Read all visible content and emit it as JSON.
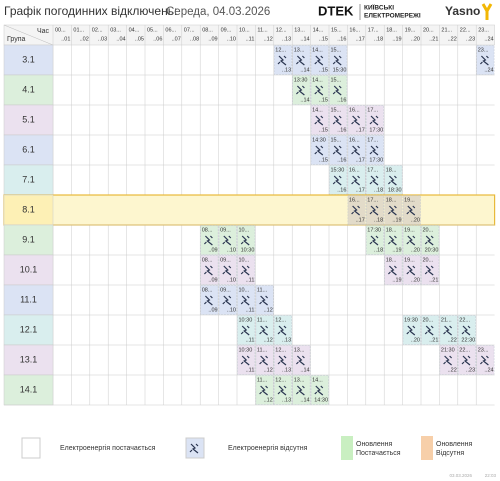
{
  "header": {
    "title": "Графік погодинних відключень:",
    "date": "Середа, 04.03.2026",
    "brand_dtek": "DTEK",
    "brand_line1": "КИЇВСЬКІ",
    "brand_line2": "ЕЛЕКТРОМЕРЕЖІ",
    "brand_yasno": "Yasno"
  },
  "table": {
    "hour_label": "Час",
    "group_label": "Група",
    "columns": [
      {
        "from": "00...",
        "to": "..01"
      },
      {
        "from": "01...",
        "to": "..02"
      },
      {
        "from": "02...",
        "to": "..03"
      },
      {
        "from": "03...",
        "to": "..04"
      },
      {
        "from": "04...",
        "to": "..05"
      },
      {
        "from": "05...",
        "to": "..06"
      },
      {
        "from": "06...",
        "to": "..07"
      },
      {
        "from": "07...",
        "to": "..08"
      },
      {
        "from": "08...",
        "to": "..09"
      },
      {
        "from": "09...",
        "to": "..10"
      },
      {
        "from": "10...",
        "to": "..11"
      },
      {
        "from": "11...",
        "to": "..12"
      },
      {
        "from": "12...",
        "to": "..13"
      },
      {
        "from": "13...",
        "to": "..14"
      },
      {
        "from": "14...",
        "to": "..15"
      },
      {
        "from": "15...",
        "to": "..16"
      },
      {
        "from": "16...",
        "to": "..17"
      },
      {
        "from": "17...",
        "to": "..18"
      },
      {
        "from": "18...",
        "to": "..19"
      },
      {
        "from": "19...",
        "to": "..20"
      },
      {
        "from": "20...",
        "to": "..21"
      },
      {
        "from": "21...",
        "to": "..22"
      },
      {
        "from": "22...",
        "to": "..23"
      },
      {
        "from": "23...",
        "to": "..24"
      }
    ],
    "rows": [
      {
        "group": "3.1",
        "color": "#dbe3f4",
        "cells": [
          null,
          null,
          null,
          null,
          null,
          null,
          null,
          null,
          null,
          null,
          null,
          null,
          {
            "from": "12...",
            "to": "..13"
          },
          {
            "from": "13...",
            "to": "..14"
          },
          {
            "from": "14...",
            "to": "..15"
          },
          {
            "from": "15...",
            "to": "15:30"
          },
          null,
          null,
          null,
          null,
          null,
          null,
          null,
          {
            "from": "23...",
            "to": "..24"
          }
        ]
      },
      {
        "group": "4.1",
        "color": "#dcefdc",
        "cells": [
          null,
          null,
          null,
          null,
          null,
          null,
          null,
          null,
          null,
          null,
          null,
          null,
          null,
          {
            "from": "13:30",
            "to": "..14"
          },
          {
            "from": "14...",
            "to": "..15"
          },
          {
            "from": "15...",
            "to": "..16"
          },
          null,
          null,
          null,
          null,
          null,
          null,
          null,
          null
        ]
      },
      {
        "group": "5.1",
        "color": "#ebe1ef",
        "cells": [
          null,
          null,
          null,
          null,
          null,
          null,
          null,
          null,
          null,
          null,
          null,
          null,
          null,
          null,
          {
            "from": "14...",
            "to": "..15"
          },
          {
            "from": "15...",
            "to": "..16"
          },
          {
            "from": "16...",
            "to": "..17"
          },
          {
            "from": "17...",
            "to": "17:30"
          },
          null,
          null,
          null,
          null,
          null,
          null
        ]
      },
      {
        "group": "6.1",
        "color": "#dbe3f4",
        "cells": [
          null,
          null,
          null,
          null,
          null,
          null,
          null,
          null,
          null,
          null,
          null,
          null,
          null,
          null,
          {
            "from": "14:30",
            "to": "..15"
          },
          {
            "from": "15...",
            "to": "..16"
          },
          {
            "from": "16...",
            "to": "..17"
          },
          {
            "from": "17...",
            "to": "17:30"
          },
          null,
          null,
          null,
          null,
          null,
          null
        ]
      },
      {
        "group": "7.1",
        "color": "#d9eeee",
        "cells": [
          null,
          null,
          null,
          null,
          null,
          null,
          null,
          null,
          null,
          null,
          null,
          null,
          null,
          null,
          null,
          {
            "from": "15:30",
            "to": "..16"
          },
          {
            "from": "16...",
            "to": "..17"
          },
          {
            "from": "17...",
            "to": "..18"
          },
          {
            "from": "18...",
            "to": "18:30"
          },
          null,
          null,
          null,
          null,
          null
        ]
      },
      {
        "group": "8.1",
        "color": "#e2dbc9",
        "highlighted": true,
        "cells": [
          null,
          null,
          null,
          null,
          null,
          null,
          null,
          null,
          null,
          null,
          null,
          null,
          null,
          null,
          null,
          null,
          {
            "from": "16...",
            "to": "..17"
          },
          {
            "from": "17...",
            "to": "..18"
          },
          {
            "from": "18...",
            "to": "..19"
          },
          {
            "from": "19...",
            "to": "..20"
          },
          null,
          null,
          null,
          null
        ]
      },
      {
        "group": "9.1",
        "color": "#dcefdc",
        "cells": [
          null,
          null,
          null,
          null,
          null,
          null,
          null,
          null,
          {
            "from": "08...",
            "to": "..09"
          },
          {
            "from": "09...",
            "to": "..10"
          },
          {
            "from": "10...",
            "to": "10:30"
          },
          null,
          null,
          null,
          null,
          null,
          null,
          {
            "from": "17:30",
            "to": "..18"
          },
          {
            "from": "18...",
            "to": "..19"
          },
          {
            "from": "19...",
            "to": "..20"
          },
          {
            "from": "20...",
            "to": "20:30"
          },
          null,
          null,
          null
        ]
      },
      {
        "group": "10.1",
        "color": "#ebe1ef",
        "cells": [
          null,
          null,
          null,
          null,
          null,
          null,
          null,
          null,
          {
            "from": "08...",
            "to": "..09"
          },
          {
            "from": "09...",
            "to": "..10"
          },
          {
            "from": "10...",
            "to": "..11"
          },
          null,
          null,
          null,
          null,
          null,
          null,
          null,
          {
            "from": "18...",
            "to": "..19"
          },
          {
            "from": "19...",
            "to": "..20"
          },
          {
            "from": "20...",
            "to": "..21"
          },
          null,
          null,
          null
        ]
      },
      {
        "group": "11.1",
        "color": "#dbe3f4",
        "cells": [
          null,
          null,
          null,
          null,
          null,
          null,
          null,
          null,
          {
            "from": "08...",
            "to": "..09"
          },
          {
            "from": "09...",
            "to": "..10"
          },
          {
            "from": "10...",
            "to": "..11"
          },
          {
            "from": "11...",
            "to": "..12"
          },
          null,
          null,
          null,
          null,
          null,
          null,
          null,
          null,
          null,
          null,
          null,
          null
        ]
      },
      {
        "group": "12.1",
        "color": "#d9eeee",
        "cells": [
          null,
          null,
          null,
          null,
          null,
          null,
          null,
          null,
          null,
          null,
          {
            "from": "10:30",
            "to": "..11"
          },
          {
            "from": "11...",
            "to": "..12"
          },
          {
            "from": "12...",
            "to": "..13"
          },
          null,
          null,
          null,
          null,
          null,
          null,
          {
            "from": "19:30",
            "to": "..20"
          },
          {
            "from": "20...",
            "to": "..21"
          },
          {
            "from": "21...",
            "to": "..22"
          },
          {
            "from": "22...",
            "to": "22:30"
          },
          null
        ]
      },
      {
        "group": "13.1",
        "color": "#ebe1ef",
        "cells": [
          null,
          null,
          null,
          null,
          null,
          null,
          null,
          null,
          null,
          null,
          {
            "from": "10:30",
            "to": "..11"
          },
          {
            "from": "11...",
            "to": "..12"
          },
          {
            "from": "12...",
            "to": "..13"
          },
          {
            "from": "13...",
            "to": "..14"
          },
          null,
          null,
          null,
          null,
          null,
          null,
          null,
          {
            "from": "21:30",
            "to": "..22"
          },
          {
            "from": "22...",
            "to": "..23"
          },
          {
            "from": "23...",
            "to": "..24"
          }
        ]
      },
      {
        "group": "14.1",
        "color": "#dcefdc",
        "cells": [
          null,
          null,
          null,
          null,
          null,
          null,
          null,
          null,
          null,
          null,
          null,
          {
            "from": "11...",
            "to": "..12"
          },
          {
            "from": "12...",
            "to": "..13"
          },
          {
            "from": "13...",
            "to": "..14"
          },
          {
            "from": "14...",
            "to": "14:30"
          },
          null,
          null,
          null,
          null,
          null,
          null,
          null,
          null,
          null
        ]
      }
    ]
  },
  "legend": {
    "power_on": "Електроенергія постачається",
    "power_off": "Електроенергія відсутня",
    "update_on_1": "Оновлення",
    "update_on_2": "Постачається",
    "update_off_1": "Оновлення",
    "update_off_2": "Відсутня"
  },
  "footer": {
    "date": "03.03.2026",
    "time": "22:03"
  }
}
